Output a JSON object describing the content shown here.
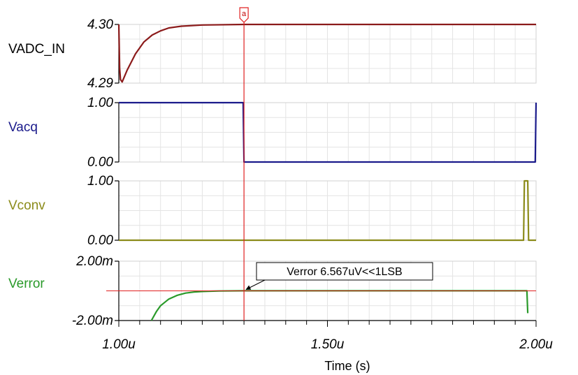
{
  "chart_data": {
    "type": "line",
    "xlabel": "Time (s)",
    "x_ticks": [
      "1.00u",
      "1.50u",
      "2.00u"
    ],
    "xlim": [
      1e-06,
      2e-06
    ],
    "cursor": {
      "label": "a",
      "x": 1.3e-06,
      "color": "#e02020"
    },
    "panels": [
      {
        "name": "VADC_IN",
        "color": "#8b1a1a",
        "label_color": "#000000",
        "y_ticks": [
          "4.30",
          "4.29"
        ],
        "ylim": [
          4.29,
          4.3
        ],
        "grid": true,
        "series": {
          "x": [
            1e-06,
            1.002e-06,
            1.004e-06,
            1.008e-06,
            1.02e-06,
            1.04e-06,
            1.06e-06,
            1.08e-06,
            1.1e-06,
            1.12e-06,
            1.15e-06,
            1.2e-06,
            1.3e-06,
            1.6e-06,
            2e-06
          ],
          "y": [
            4.3,
            4.2925,
            4.2906,
            4.2902,
            4.2922,
            4.295,
            4.297,
            4.2982,
            4.2989,
            4.2994,
            4.2997,
            4.2999,
            4.3,
            4.3,
            4.3
          ]
        }
      },
      {
        "name": "Vacq",
        "color": "#1a1a8b",
        "label_color": "#1a1a8b",
        "y_ticks": [
          "1.00",
          "0.00"
        ],
        "ylim": [
          0,
          1
        ],
        "grid": true,
        "series": {
          "x": [
            1e-06,
            1.298e-06,
            1.3e-06,
            1.998e-06,
            2e-06
          ],
          "y": [
            1,
            1,
            0,
            0,
            1
          ]
        }
      },
      {
        "name": "Vconv",
        "color": "#8b8b1a",
        "label_color": "#8b8b1a",
        "y_ticks": [
          "1.00",
          "0.00"
        ],
        "ylim": [
          0,
          1
        ],
        "grid": true,
        "series": {
          "x": [
            1e-06,
            1.97e-06,
            1.972e-06,
            1.98e-06,
            1.982e-06,
            2e-06
          ],
          "y": [
            0,
            0,
            1,
            1,
            0,
            0
          ]
        }
      },
      {
        "name": "Verror",
        "color": "#2a9a2a",
        "label_color": "#2a9a2a",
        "y_ticks": [
          "2.00m",
          "-2.00m"
        ],
        "ylim": [
          -0.002,
          0.002
        ],
        "grid": true,
        "series": {
          "x": [
            1.078e-06,
            1.09e-06,
            1.1e-06,
            1.12e-06,
            1.14e-06,
            1.16e-06,
            1.18e-06,
            1.2e-06,
            1.24e-06,
            1.3e-06,
            1.5e-06,
            1.7e-06,
            1.96e-06,
            1.978e-06,
            1.98e-06
          ],
          "y": [
            -0.002,
            -0.0014,
            -0.001,
            -0.00055,
            -0.0003,
            -0.00015,
            -8e-05,
            -4e-05,
            -1e-05,
            6.6e-06,
            6.6e-06,
            6.6e-06,
            6.6e-06,
            6.6e-06,
            -0.0015
          ]
        },
        "reference_line": {
          "y": 0,
          "color": "#e02020"
        },
        "annotation": {
          "text": "Verror 6.567uV<<1LSB",
          "x": 1.3e-06,
          "y": 0
        }
      }
    ]
  }
}
